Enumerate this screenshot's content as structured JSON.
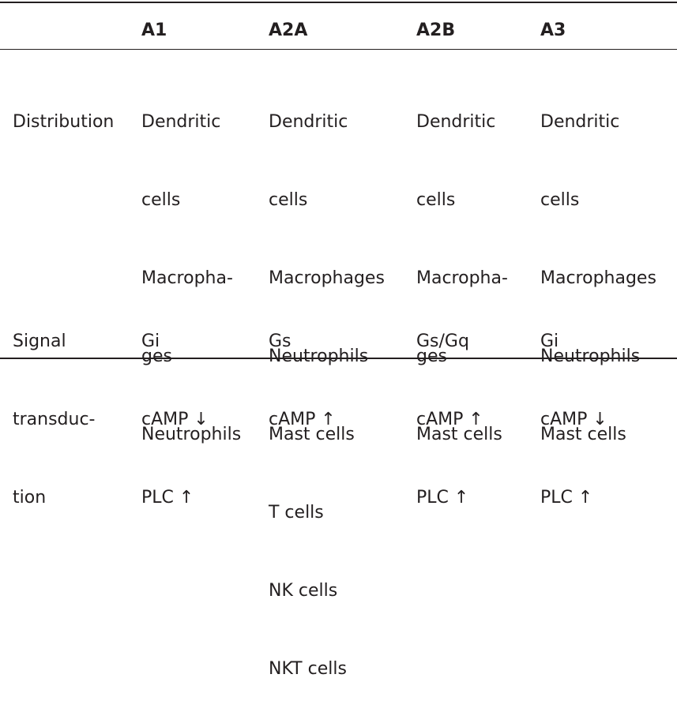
{
  "headers": [
    "",
    "A1",
    "A2A",
    "A2B",
    "A3"
  ],
  "rows": [
    {
      "label": [
        "Distribution"
      ],
      "cells": [
        [
          "Dendritic",
          "cells",
          "Macropha-",
          "ges",
          "Neutrophils"
        ],
        [
          "Dendritic",
          "cells",
          "Macrophages",
          "Neutrophils",
          "Mast cells",
          "T cells",
          "NK cells",
          "NKT cells"
        ],
        [
          "Dendritic",
          "cells",
          "Macropha-",
          "ges",
          "Mast cells"
        ],
        [
          "Dendritic",
          "cells",
          "Macrophages",
          "Neutrophils",
          "Mast cells"
        ]
      ]
    },
    {
      "label": [
        "Signal",
        "transduc-",
        "tion"
      ],
      "cells": [
        [
          "Gi",
          "cAMP ↓",
          "PLC ↑"
        ],
        [
          "Gs",
          "cAMP ↑"
        ],
        [
          "Gs/Gq",
          "cAMP ↑",
          "PLC ↑"
        ],
        [
          "Gi",
          "cAMP ↓",
          "PLC ↑"
        ]
      ]
    }
  ]
}
